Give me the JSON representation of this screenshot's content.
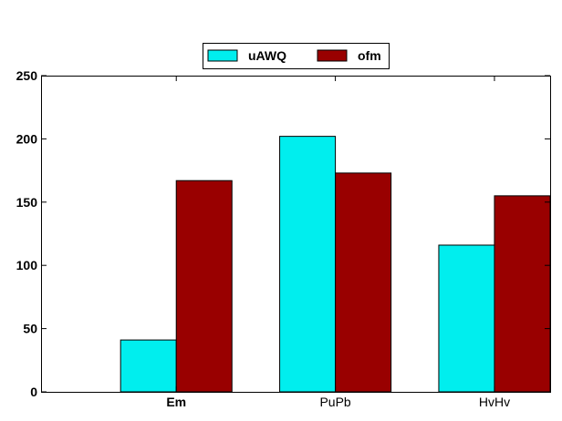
{
  "chart_data": {
    "type": "bar",
    "categories": [
      "Em",
      "PuPb",
      "HvHv"
    ],
    "category_label_weights": [
      "bold",
      "normal",
      "normal"
    ],
    "series": [
      {
        "name": "uAWQ",
        "color": "#00eeee",
        "values": [
          41,
          202,
          116
        ]
      },
      {
        "name": "ofm",
        "color": "#990000",
        "values": [
          167,
          173,
          155
        ]
      }
    ],
    "yticks": [
      0,
      50,
      100,
      150,
      200,
      250
    ],
    "ylim": [
      0,
      250
    ],
    "title": "",
    "xlabel": "",
    "ylabel": "",
    "grid": false,
    "legend_position": "top-center"
  }
}
